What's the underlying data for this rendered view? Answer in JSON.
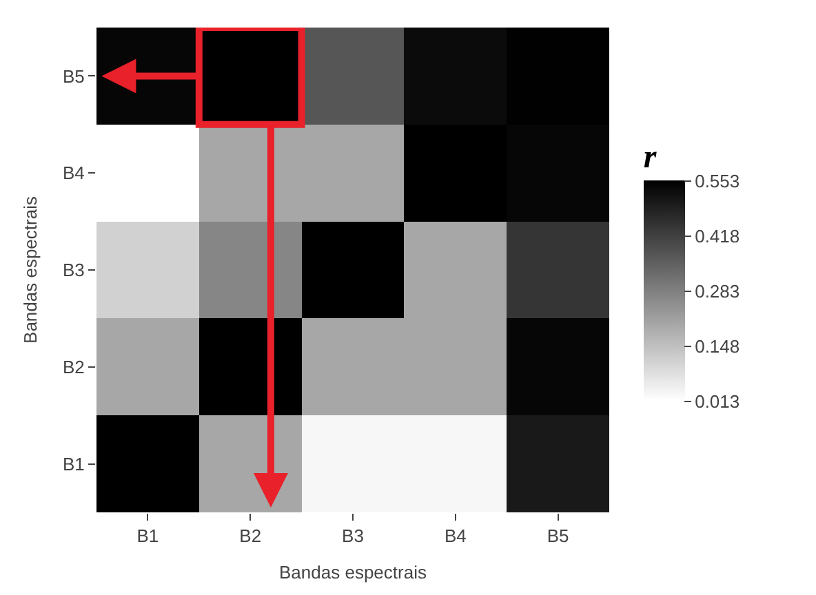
{
  "chart_data": {
    "type": "heatmap",
    "xlabel": "Bandas espectrais",
    "ylabel": "Bandas espectrais",
    "clabel": "r",
    "categories": [
      "B1",
      "B2",
      "B3",
      "B4",
      "B5"
    ],
    "y_categories": [
      "B5",
      "B4",
      "B3",
      "B2",
      "B1"
    ],
    "cells": [
      [
        0.54,
        0.553,
        0.37,
        0.53,
        0.55
      ],
      [
        0.013,
        0.2,
        0.2,
        0.553,
        0.54
      ],
      [
        0.11,
        0.27,
        0.553,
        0.2,
        0.44
      ],
      [
        0.2,
        0.553,
        0.2,
        0.2,
        0.54
      ],
      [
        0.553,
        0.2,
        0.03,
        0.03,
        0.5
      ]
    ],
    "clim": [
      0.013,
      0.553
    ],
    "cticks": [
      0.013,
      0.148,
      0.283,
      0.418,
      0.553
    ]
  }
}
